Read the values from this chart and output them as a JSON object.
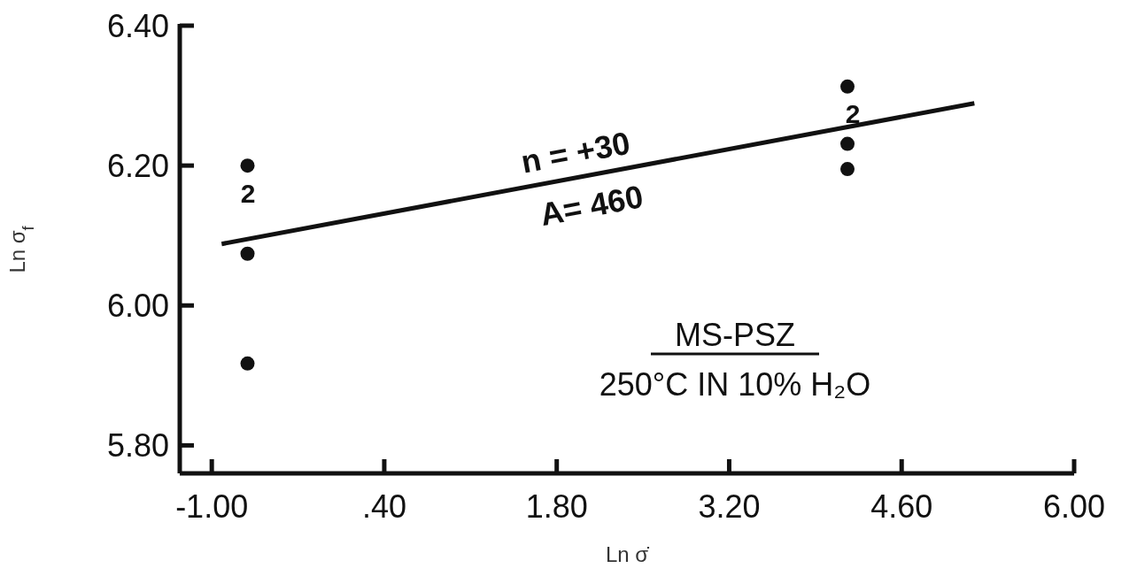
{
  "chart_data": {
    "type": "scatter",
    "xlabel": "Ln σ̇",
    "ylabel": "Ln σ$_{f}$",
    "xlim": [
      -1.26,
      6.0
    ],
    "ylim": [
      5.76,
      6.4
    ],
    "xticks": [
      {
        "value": -1,
        "label": "-1.00"
      },
      {
        "value": 0.4,
        "label": ".40"
      },
      {
        "value": 1.8,
        "label": "1.80"
      },
      {
        "value": 3.2,
        "label": "3.20"
      },
      {
        "value": 4.6,
        "label": "4.60"
      },
      {
        "value": 6,
        "label": "6.00"
      }
    ],
    "yticks": [
      {
        "value": 5.8,
        "label": "5.80"
      },
      {
        "value": 6,
        "label": "6.00"
      },
      {
        "value": 6.2,
        "label": "6.20"
      },
      {
        "value": 6.4,
        "label": "6.40"
      }
    ],
    "grid": false,
    "series": [
      {
        "marker": "circle",
        "color": "#111111",
        "x": [
          -0.71,
          -0.71,
          -0.71,
          4.16,
          4.16,
          4.16
        ],
        "values": [
          6.2,
          6.074,
          5.917,
          6.313,
          6.231,
          6.195
        ]
      },
      {
        "type": "line",
        "color": "#111111",
        "x": [
          -0.92,
          5.19
        ],
        "values": [
          6.088,
          6.289
        ]
      }
    ],
    "annotations": [
      "2",
      "2",
      "n = +30",
      "A= 460",
      "MS-PSZ",
      "250°C IN 10% H₂O"
    ]
  }
}
